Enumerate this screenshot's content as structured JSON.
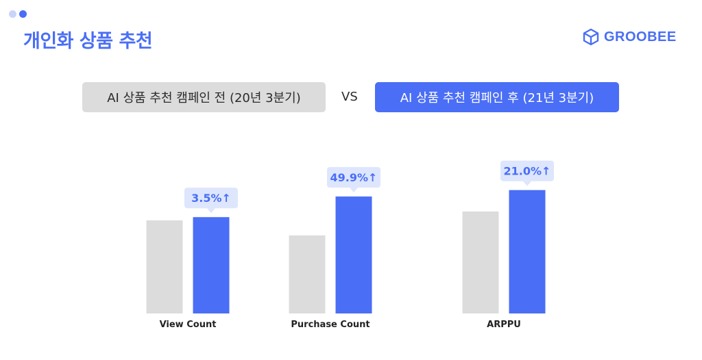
{
  "header": {
    "title": "개인화 상품 추천",
    "logo_text": "GROOBEE",
    "logo_icon": "hexagon-cube-icon"
  },
  "comparison": {
    "before_label": "AI 상품 추천 캠페인 전 (20년 3분기)",
    "vs_label": "VS",
    "after_label": "AI 상품 추천 캠페인 후 (21년 3분기)"
  },
  "colors": {
    "accent": "#4a6ef5",
    "before_bar": "#dcdcdc",
    "callout_bg": "#dde6fd"
  },
  "chart_data": {
    "type": "bar",
    "categories": [
      "View Count",
      "Purchase Count",
      "ARPPU"
    ],
    "series": [
      {
        "values": [
          100,
          100,
          100
        ]
      },
      {
        "values": [
          103.5,
          149.9,
          121.0
        ]
      }
    ],
    "annotations": [
      "3.5%↑",
      "49.9%↑",
      "21.0%↑"
    ],
    "xlabel": "",
    "ylabel": "",
    "grid": false
  }
}
